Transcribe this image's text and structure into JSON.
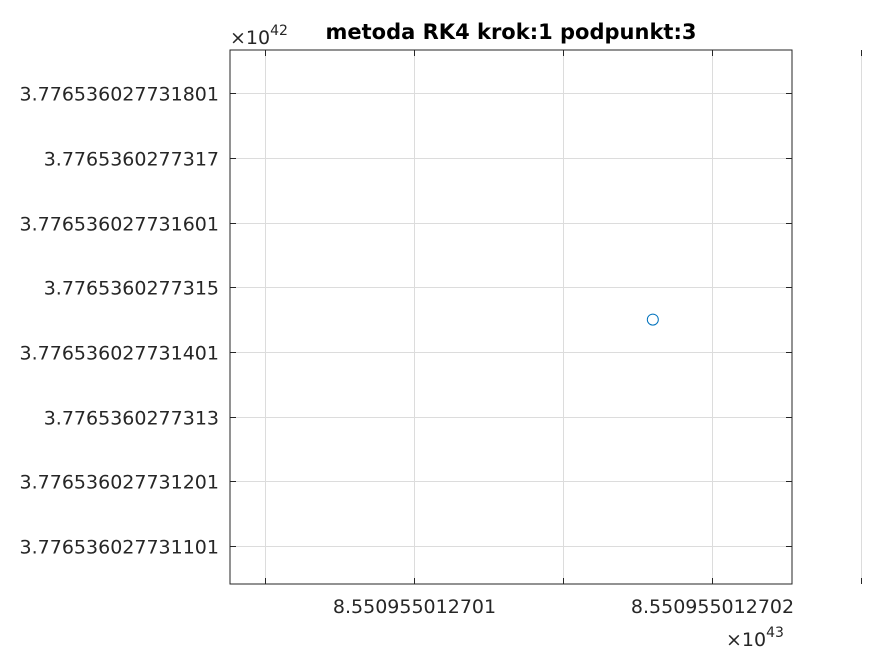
{
  "chart_data": {
    "type": "scatter",
    "title": "metoda RK4 krok:1 podpunkt:3",
    "xlabel": "",
    "ylabel": "",
    "x_exponent": {
      "times": "×10",
      "power": "43"
    },
    "y_exponent": {
      "times": "×10",
      "power": "42"
    },
    "x_ticks": [
      {
        "value": 8.5509550127005,
        "label": ""
      },
      {
        "value": 8.550955012701,
        "label": "8.550955012701"
      },
      {
        "value": 8.5509550127015,
        "label": ""
      },
      {
        "value": 8.550955012702,
        "label": "8.550955012702"
      },
      {
        "value": 8.5509550127025,
        "label": ""
      }
    ],
    "y_ticks": [
      {
        "value": 3.7765360277318,
        "label": "3.776536027731801"
      },
      {
        "value": 3.7765360277317,
        "label": "3.7765360277317"
      },
      {
        "value": 3.7765360277316,
        "label": "3.776536027731601"
      },
      {
        "value": 3.7765360277315,
        "label": "3.7765360277315"
      },
      {
        "value": 3.7765360277314,
        "label": "3.776536027731401"
      },
      {
        "value": 3.7765360277313,
        "label": "3.7765360277313"
      },
      {
        "value": 3.7765360277312,
        "label": "3.776536027731201"
      },
      {
        "value": 3.7765360277311,
        "label": "3.776536027731101"
      }
    ],
    "xlim": [
      8.550955012700381,
      8.550955012702268
    ],
    "ylim": [
      3.776536027731041,
      3.776536027731867
    ],
    "grid": true,
    "points": [
      {
        "x": 8.5509550127018,
        "y": 3.77653602773145
      }
    ],
    "colors": {
      "marker": "#0072bd",
      "grid": "#dcdcdc",
      "axis": "#262626"
    },
    "marker": "circle-open"
  }
}
